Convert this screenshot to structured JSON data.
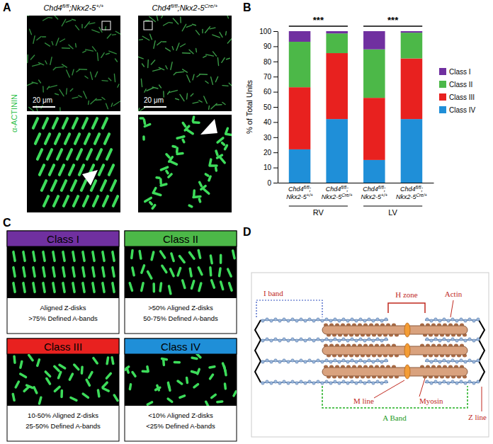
{
  "panel_a": {
    "panel_label": "A",
    "titles": [
      "Chd4fl/fl;Nkx2-5+/+",
      "Chd4fl/fl;Nkx2-5Cre/+"
    ],
    "stain": "α-ACTININ",
    "scale_bars": [
      "20 μm",
      "20 μm"
    ]
  },
  "chart_data": {
    "panel_label": "B",
    "type": "bar",
    "stacked": true,
    "categories": [
      "Chd4fl/fl;Nkx2-5+/+",
      "Chd4fl/fl;Nkx2-5Cre/+",
      "Chd4fl/fl;Nkx2-5+/+",
      "Chd4fl/fl;Nkx2-5Cre/+"
    ],
    "groups": [
      "RV",
      "LV"
    ],
    "annotations": [
      "***",
      "***"
    ],
    "ylabel": "% of Total Units",
    "ylim": [
      0,
      100
    ],
    "yticks": [
      0,
      10,
      20,
      30,
      40,
      50,
      60,
      70,
      80,
      90,
      100
    ],
    "legend": "right",
    "series": [
      {
        "name": "Class I",
        "color": "#7030a0",
        "values": [
          7,
          1.5,
          12,
          1
        ]
      },
      {
        "name": "Class II",
        "color": "#4cb848",
        "values": [
          30,
          13,
          32,
          17
        ]
      },
      {
        "name": "Class III",
        "color": "#e8211f",
        "values": [
          41,
          43.5,
          41,
          40
        ]
      },
      {
        "name": "Class IV",
        "color": "#1f8fd8",
        "values": [
          22,
          42,
          15,
          42
        ]
      }
    ]
  },
  "panel_c": {
    "panel_label": "C",
    "classes": [
      {
        "name": "Class I",
        "lines": [
          "Aligned Z-disks",
          ">75% Defined A-bands"
        ]
      },
      {
        "name": "Class II",
        "lines": [
          ">50% Aligned Z-disks",
          "50-75% Defined A-bands"
        ]
      },
      {
        "name": "Class III",
        "lines": [
          "10-50% Aligned Z-disks",
          "25-50% Defined A-bands"
        ]
      },
      {
        "name": "Class IV",
        "lines": [
          "<10% Aligned Z-disks",
          "<25% Defined A-bands"
        ]
      }
    ]
  },
  "panel_d": {
    "panel_label": "D",
    "labels": {
      "i_band": "I band",
      "h_zone": "H zone",
      "actin": "Actin",
      "m_line": "M line",
      "myosin": "Myosin",
      "z_line": "Z line",
      "a_band": "A Band"
    }
  }
}
